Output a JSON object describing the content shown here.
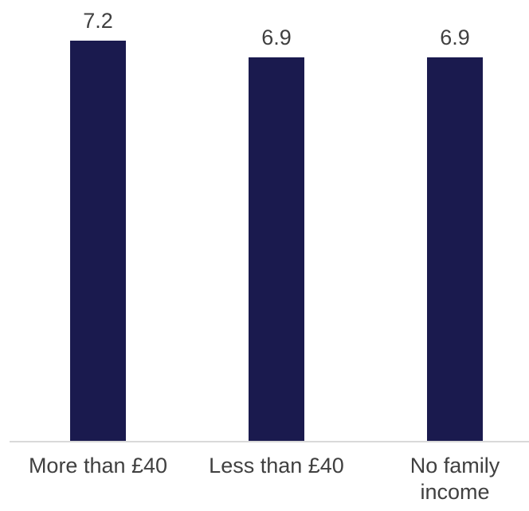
{
  "chart_data": {
    "type": "bar",
    "title": "",
    "xlabel": "",
    "ylabel": "",
    "categories": [
      [
        "More than £40"
      ],
      [
        "Less than £40"
      ],
      [
        "No family",
        "income"
      ]
    ],
    "values": [
      7.2,
      6.9,
      6.9
    ],
    "data_labels": [
      "7.2",
      "6.9",
      "6.9"
    ],
    "ylim": [
      0,
      7.2
    ],
    "grid": false,
    "legend": "none",
    "colors": {
      "bar": "#1a1a4e",
      "axis": "#d9d9d9",
      "text": "#404040"
    }
  }
}
